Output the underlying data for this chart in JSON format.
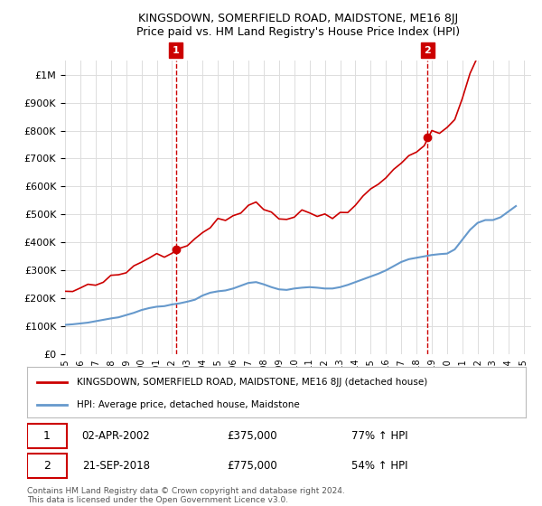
{
  "title": "KINGSDOWN, SOMERFIELD ROAD, MAIDSTONE, ME16 8JJ",
  "subtitle": "Price paid vs. HM Land Registry's House Price Index (HPI)",
  "legend_line1": "KINGSDOWN, SOMERFIELD ROAD, MAIDSTONE, ME16 8JJ (detached house)",
  "legend_line2": "HPI: Average price, detached house, Maidstone",
  "sale1_label": "1",
  "sale1_date": "02-APR-2002",
  "sale1_price": "£375,000",
  "sale1_hpi": "77% ↑ HPI",
  "sale1_year": 2002.25,
  "sale1_value": 375000,
  "sale2_label": "2",
  "sale2_date": "21-SEP-2018",
  "sale2_price": "£775,000",
  "sale2_hpi": "54% ↑ HPI",
  "sale2_year": 2018.72,
  "sale2_value": 775000,
  "footer1": "Contains HM Land Registry data © Crown copyright and database right 2024.",
  "footer2": "This data is licensed under the Open Government Licence v3.0.",
  "red_color": "#cc0000",
  "blue_color": "#6699cc",
  "background_color": "#ffffff",
  "grid_color": "#dddddd",
  "ylim": [
    0,
    1050000
  ],
  "xlim": [
    1995,
    2025.5
  ],
  "yticks": [
    0,
    100000,
    200000,
    300000,
    400000,
    500000,
    600000,
    700000,
    800000,
    900000,
    1000000
  ],
  "ytick_labels": [
    "£0",
    "£100K",
    "£200K",
    "£300K",
    "£400K",
    "£500K",
    "£600K",
    "£700K",
    "£800K",
    "£900K",
    "£1M"
  ],
  "xticks": [
    1995,
    1996,
    1997,
    1998,
    1999,
    2000,
    2001,
    2002,
    2003,
    2004,
    2005,
    2006,
    2007,
    2008,
    2009,
    2010,
    2011,
    2012,
    2013,
    2014,
    2015,
    2016,
    2017,
    2018,
    2019,
    2020,
    2021,
    2022,
    2023,
    2024,
    2025
  ]
}
